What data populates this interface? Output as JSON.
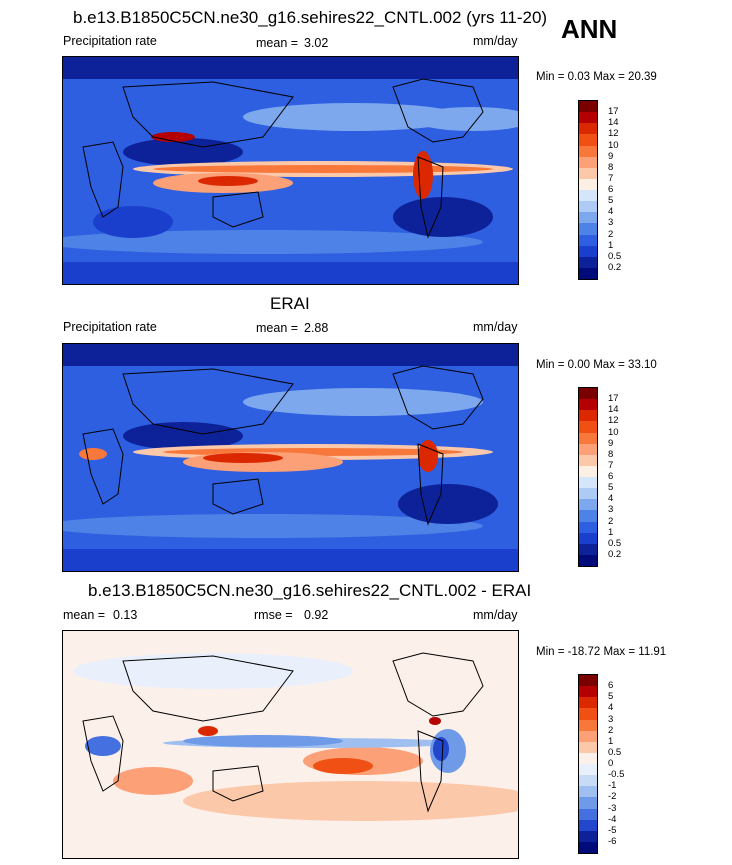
{
  "season": "ANN",
  "panels": [
    {
      "title": "b.e13.B1850C5CN.ne30_g16.sehires22_CNTL.002 (yrs 11-20)",
      "left_label": "Precipitation rate",
      "stat1_label": "mean =",
      "stat1_value": "3.02",
      "units": "mm/day",
      "minmax": "Min =   0.03 Max =  20.39"
    },
    {
      "title": "ERAI",
      "left_label": "Precipitation rate",
      "stat1_label": "mean =",
      "stat1_value": "2.88",
      "units": "mm/day",
      "minmax": "Min =   0.00 Max =  33.10"
    },
    {
      "title": "b.e13.B1850C5CN.ne30_g16.sehires22_CNTL.002 - ERAI",
      "left_label": "",
      "stat1_label": "mean =",
      "stat1_value": "0.13",
      "stat2_label": "rmse =",
      "stat2_value": "0.92",
      "units": "mm/day",
      "minmax": "Min = -18.72 Max =  11.91"
    }
  ],
  "chart_data": [
    {
      "type": "heatmap",
      "title": "b.e13.B1850C5CN.ne30_g16.sehires22_CNTL.002 (yrs 11-20)",
      "variable": "Precipitation rate",
      "units": "mm/day",
      "mean": 3.02,
      "min": 0.03,
      "max": 20.39,
      "colorbar_levels": [
        "17",
        "14",
        "12",
        "10",
        "9",
        "8",
        "7",
        "6",
        "5",
        "4",
        "3",
        "2",
        "1",
        "0.5",
        "0.2"
      ],
      "colorbar_colors": [
        "#7a0000",
        "#b40000",
        "#dc2800",
        "#f05014",
        "#f8783c",
        "#fca078",
        "#fcc8aa",
        "#fcefe4",
        "#d6e6fa",
        "#aecbf5",
        "#7da8ee",
        "#4f82e6",
        "#2e5fe0",
        "#1a3fcc",
        "#0d2299",
        "#000a78"
      ]
    },
    {
      "type": "heatmap",
      "title": "ERAI",
      "variable": "Precipitation rate",
      "units": "mm/day",
      "mean": 2.88,
      "min": 0.0,
      "max": 33.1,
      "colorbar_levels": [
        "17",
        "14",
        "12",
        "10",
        "9",
        "8",
        "7",
        "6",
        "5",
        "4",
        "3",
        "2",
        "1",
        "0.5",
        "0.2"
      ],
      "colorbar_colors": [
        "#7a0000",
        "#b40000",
        "#dc2800",
        "#f05014",
        "#f8783c",
        "#fca078",
        "#fcc8aa",
        "#fcefe4",
        "#d6e6fa",
        "#aecbf5",
        "#7da8ee",
        "#4f82e6",
        "#2e5fe0",
        "#1a3fcc",
        "#0d2299",
        "#000a78"
      ]
    },
    {
      "type": "heatmap",
      "title": "b.e13.B1850C5CN.ne30_g16.sehires22_CNTL.002 - ERAI",
      "units": "mm/day",
      "mean": 0.13,
      "rmse": 0.92,
      "min": -18.72,
      "max": 11.91,
      "colorbar_levels": [
        "6",
        "5",
        "4",
        "3",
        "2",
        "1",
        "0.5",
        "0",
        "-0.5",
        "-1",
        "-2",
        "-3",
        "-4",
        "-5",
        "-6"
      ],
      "colorbar_colors": [
        "#7a0000",
        "#b40000",
        "#dc2800",
        "#f05014",
        "#f8783c",
        "#fca078",
        "#fcc8aa",
        "#fcf0ea",
        "#eaf0fb",
        "#c8dbf6",
        "#9ebff0",
        "#6e9ae8",
        "#4470e0",
        "#2246cc",
        "#0d2299",
        "#000a78"
      ]
    }
  ]
}
